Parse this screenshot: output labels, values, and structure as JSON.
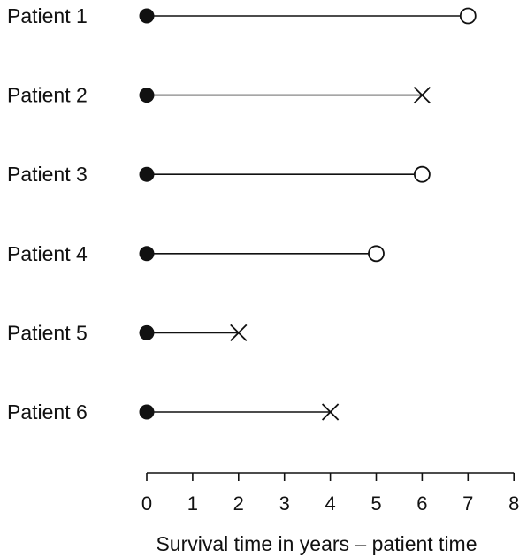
{
  "chart_data": {
    "type": "scatter",
    "title": "",
    "xlabel": "Survival time in years – patient time",
    "ylabel": "",
    "xlim": [
      0,
      8
    ],
    "xticks": [
      "0",
      "1",
      "2",
      "3",
      "4",
      "5",
      "6",
      "7",
      "8"
    ],
    "grid": false,
    "start_marker": "filled circle",
    "end_markers": {
      "open_circle": "open circle",
      "cross": "cross"
    },
    "series": [
      {
        "label": "Patient 1",
        "start": 0,
        "end": 7,
        "end_marker": "open_circle"
      },
      {
        "label": "Patient 2",
        "start": 0,
        "end": 6,
        "end_marker": "cross"
      },
      {
        "label": "Patient 3",
        "start": 0,
        "end": 6,
        "end_marker": "open_circle"
      },
      {
        "label": "Patient 4",
        "start": 0,
        "end": 5,
        "end_marker": "open_circle"
      },
      {
        "label": "Patient 5",
        "start": 0,
        "end": 2,
        "end_marker": "cross"
      },
      {
        "label": "Patient 6",
        "start": 0,
        "end": 4,
        "end_marker": "cross"
      }
    ],
    "colors": {
      "ink": "#111111",
      "background": "#ffffff"
    }
  }
}
